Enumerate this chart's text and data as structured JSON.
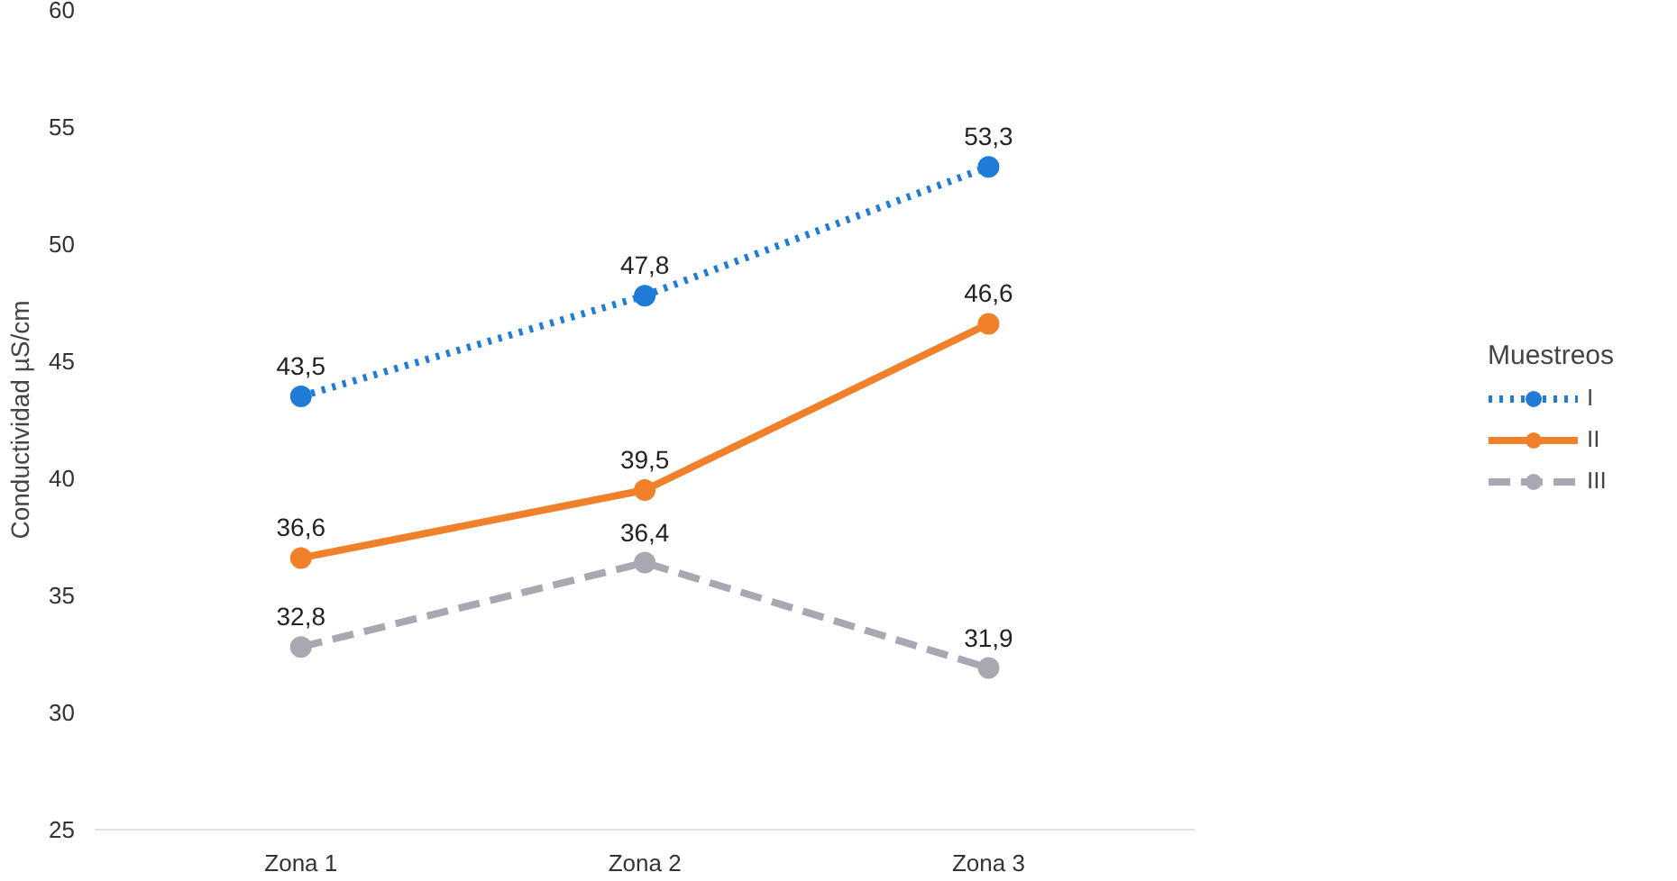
{
  "chart_data": {
    "type": "line",
    "ylabel": "Conductividad µS/cm",
    "legend_title": "Muestreos",
    "categories": [
      "Zona 1",
      "Zona 2",
      "Zona 3"
    ],
    "series": [
      {
        "name": "I",
        "color": "#1f7bd6",
        "values": [
          43.5,
          47.8,
          53.3
        ],
        "value_labels": [
          "43,5",
          "47,8",
          "53,3"
        ],
        "line_style": "dotted"
      },
      {
        "name": "II",
        "color": "#f0802a",
        "values": [
          36.6,
          39.5,
          46.6
        ],
        "value_labels": [
          "36,6",
          "39,5",
          "46,6"
        ],
        "line_style": "solid"
      },
      {
        "name": "III",
        "color": "#a8a8b2",
        "values": [
          32.8,
          36.4,
          31.9
        ],
        "value_labels": [
          "32,8",
          "36,4",
          "31,9"
        ],
        "line_style": "dashed"
      }
    ],
    "ylim": [
      25,
      60
    ],
    "yticks": [
      25,
      30,
      35,
      40,
      45,
      50,
      55,
      60
    ],
    "marker": "circle",
    "legend": "right",
    "grid": false
  }
}
